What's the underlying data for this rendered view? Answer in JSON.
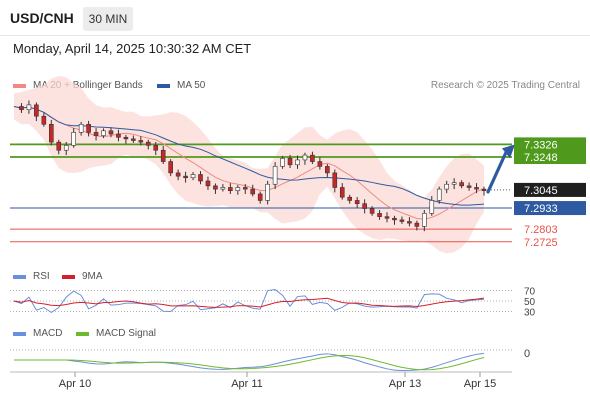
{
  "header": {
    "symbol": "USD/CNH",
    "timeframe": "30 MIN",
    "datetime": "Monday, April 14, 2025 10:30:32 AM CET"
  },
  "legend": {
    "ma20": "MA 20 + Bollinger Bands",
    "ma50": "MA 50",
    "research": "Research © 2025 Trading Central",
    "rsi": "RSI",
    "ma9": "9MA",
    "macd": "MACD",
    "macd_signal": "MACD Signal"
  },
  "colors": {
    "ma20": "#f08a82",
    "ma50": "#2d5aa0",
    "bollinger": "#fbd9d6",
    "green_level": "#4f9a1c",
    "blue_level": "#2d5aa0",
    "red_level": "#e8534a",
    "candle_up": "#ffffff",
    "candle_down": "#c62828",
    "rsi": "#6b8fd8",
    "rsi_ma": "#d4202a",
    "macd": "#6b8fd8",
    "macd_signal": "#6cbb2c"
  },
  "chart_data": {
    "type": "candlestick",
    "x_labels": [
      "Apr 10",
      "Apr 11",
      "Apr 13",
      "Apr 15"
    ],
    "price_ylim": [
      7.26,
      7.36
    ],
    "current_price": 7.3045,
    "levels": [
      {
        "value": 7.3326,
        "label": "7.3326",
        "kind": "resistance",
        "color": "#4f9a1c"
      },
      {
        "value": 7.3248,
        "label": "7.3248",
        "kind": "resistance",
        "color": "#4f9a1c"
      },
      {
        "value": 7.2933,
        "label": "7.2933",
        "kind": "pivot",
        "color": "#2d5aa0"
      },
      {
        "value": 7.2803,
        "label": "7.2803",
        "kind": "support",
        "color": "#e8534a"
      },
      {
        "value": 7.2725,
        "label": "7.2725",
        "kind": "support",
        "color": "#e8534a"
      }
    ],
    "price_path": [
      7.356,
      7.354,
      7.357,
      7.35,
      7.345,
      7.334,
      7.329,
      7.332,
      7.34,
      7.345,
      7.34,
      7.338,
      7.341,
      7.339,
      7.337,
      7.336,
      7.335,
      7.334,
      7.332,
      7.329,
      7.322,
      7.315,
      7.313,
      7.312,
      7.314,
      7.31,
      7.307,
      7.305,
      7.306,
      7.304,
      7.306,
      7.305,
      7.302,
      7.298,
      7.308,
      7.319,
      7.324,
      7.32,
      7.323,
      7.326,
      7.322,
      7.319,
      7.315,
      7.306,
      7.3,
      7.298,
      7.296,
      7.293,
      7.29,
      7.288,
      7.287,
      7.286,
      7.285,
      7.284,
      7.282,
      7.29,
      7.298,
      7.305,
      7.308,
      7.309,
      7.307,
      7.306,
      7.305,
      7.304
    ],
    "rsi": {
      "levels": [
        70,
        50,
        30
      ],
      "labels": [
        "70",
        "50",
        "30"
      ]
    },
    "macd": {
      "zero_label": "0"
    }
  }
}
